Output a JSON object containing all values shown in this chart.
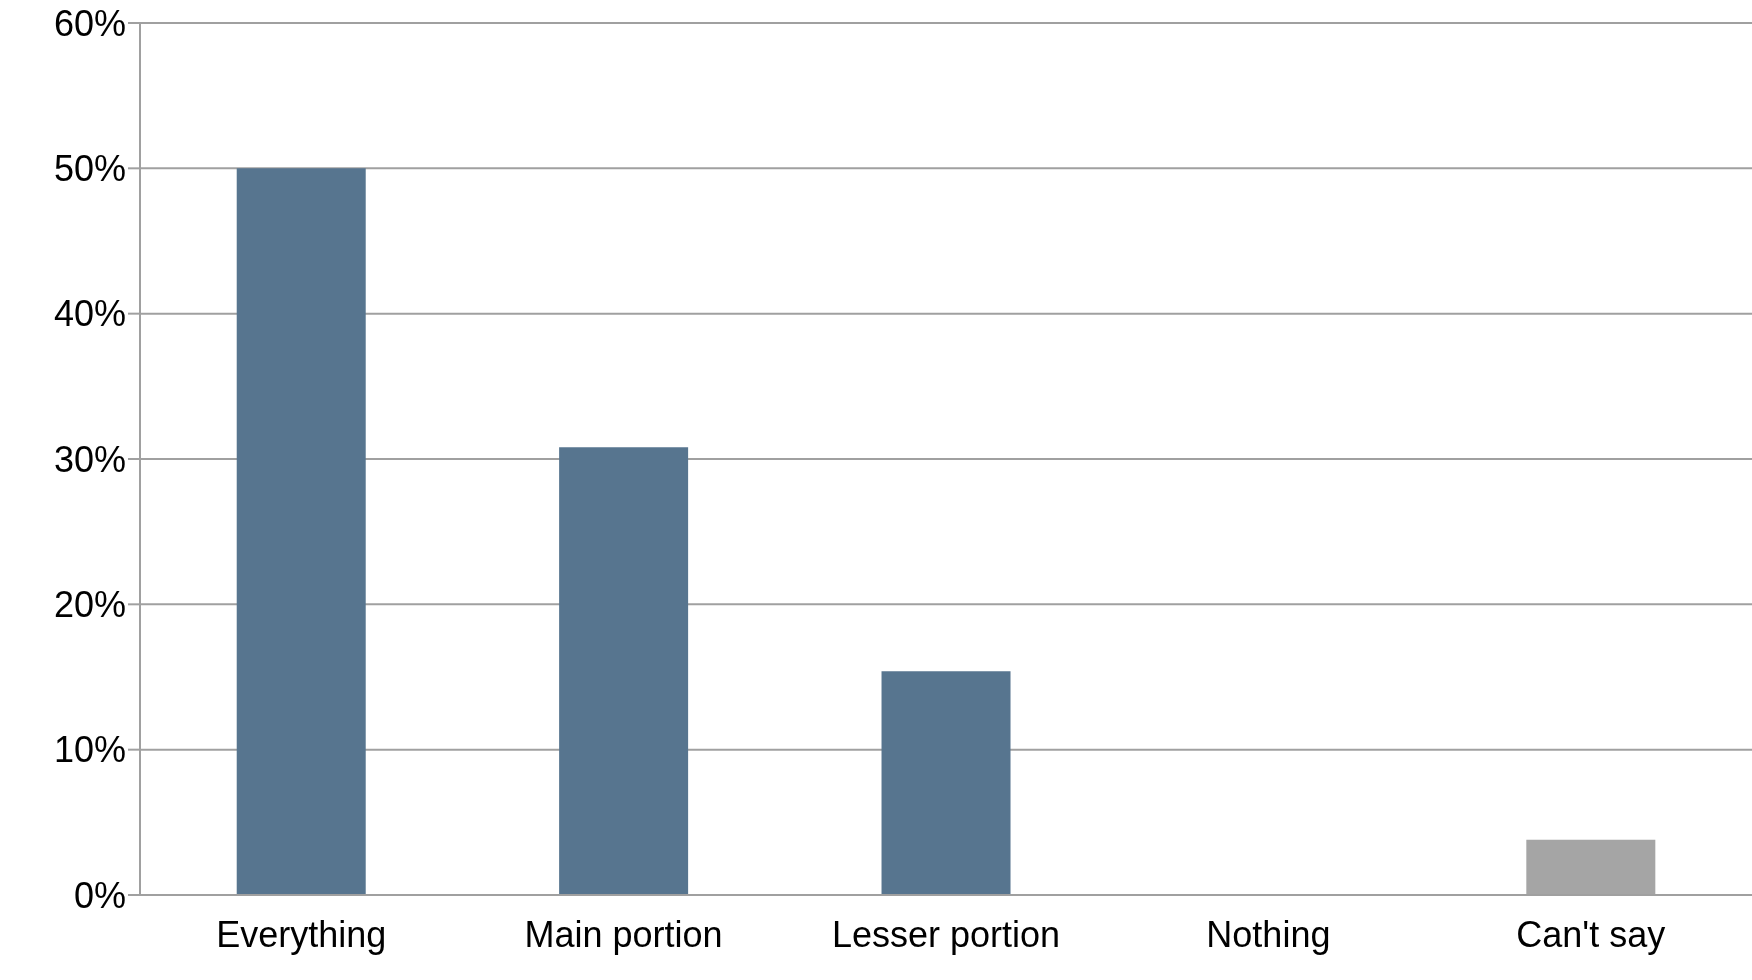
{
  "chart_data": {
    "type": "bar",
    "categories": [
      "Everything",
      "Main portion",
      "Lesser portion",
      "Nothing",
      "Can't say"
    ],
    "values": [
      50,
      30.8,
      15.4,
      0,
      3.8
    ],
    "colors": [
      "#57758f",
      "#57758f",
      "#57758f",
      "#57758f",
      "#a5a5a5"
    ],
    "ylim": [
      0,
      60
    ],
    "yticks": [
      {
        "value": 0,
        "label": "0%"
      },
      {
        "value": 10,
        "label": "10%"
      },
      {
        "value": 20,
        "label": "20%"
      },
      {
        "value": 30,
        "label": "30%"
      },
      {
        "value": 40,
        "label": "40%"
      },
      {
        "value": 50,
        "label": "50%"
      },
      {
        "value": 60,
        "label": "60%"
      }
    ],
    "grid": "y",
    "legend": false
  }
}
